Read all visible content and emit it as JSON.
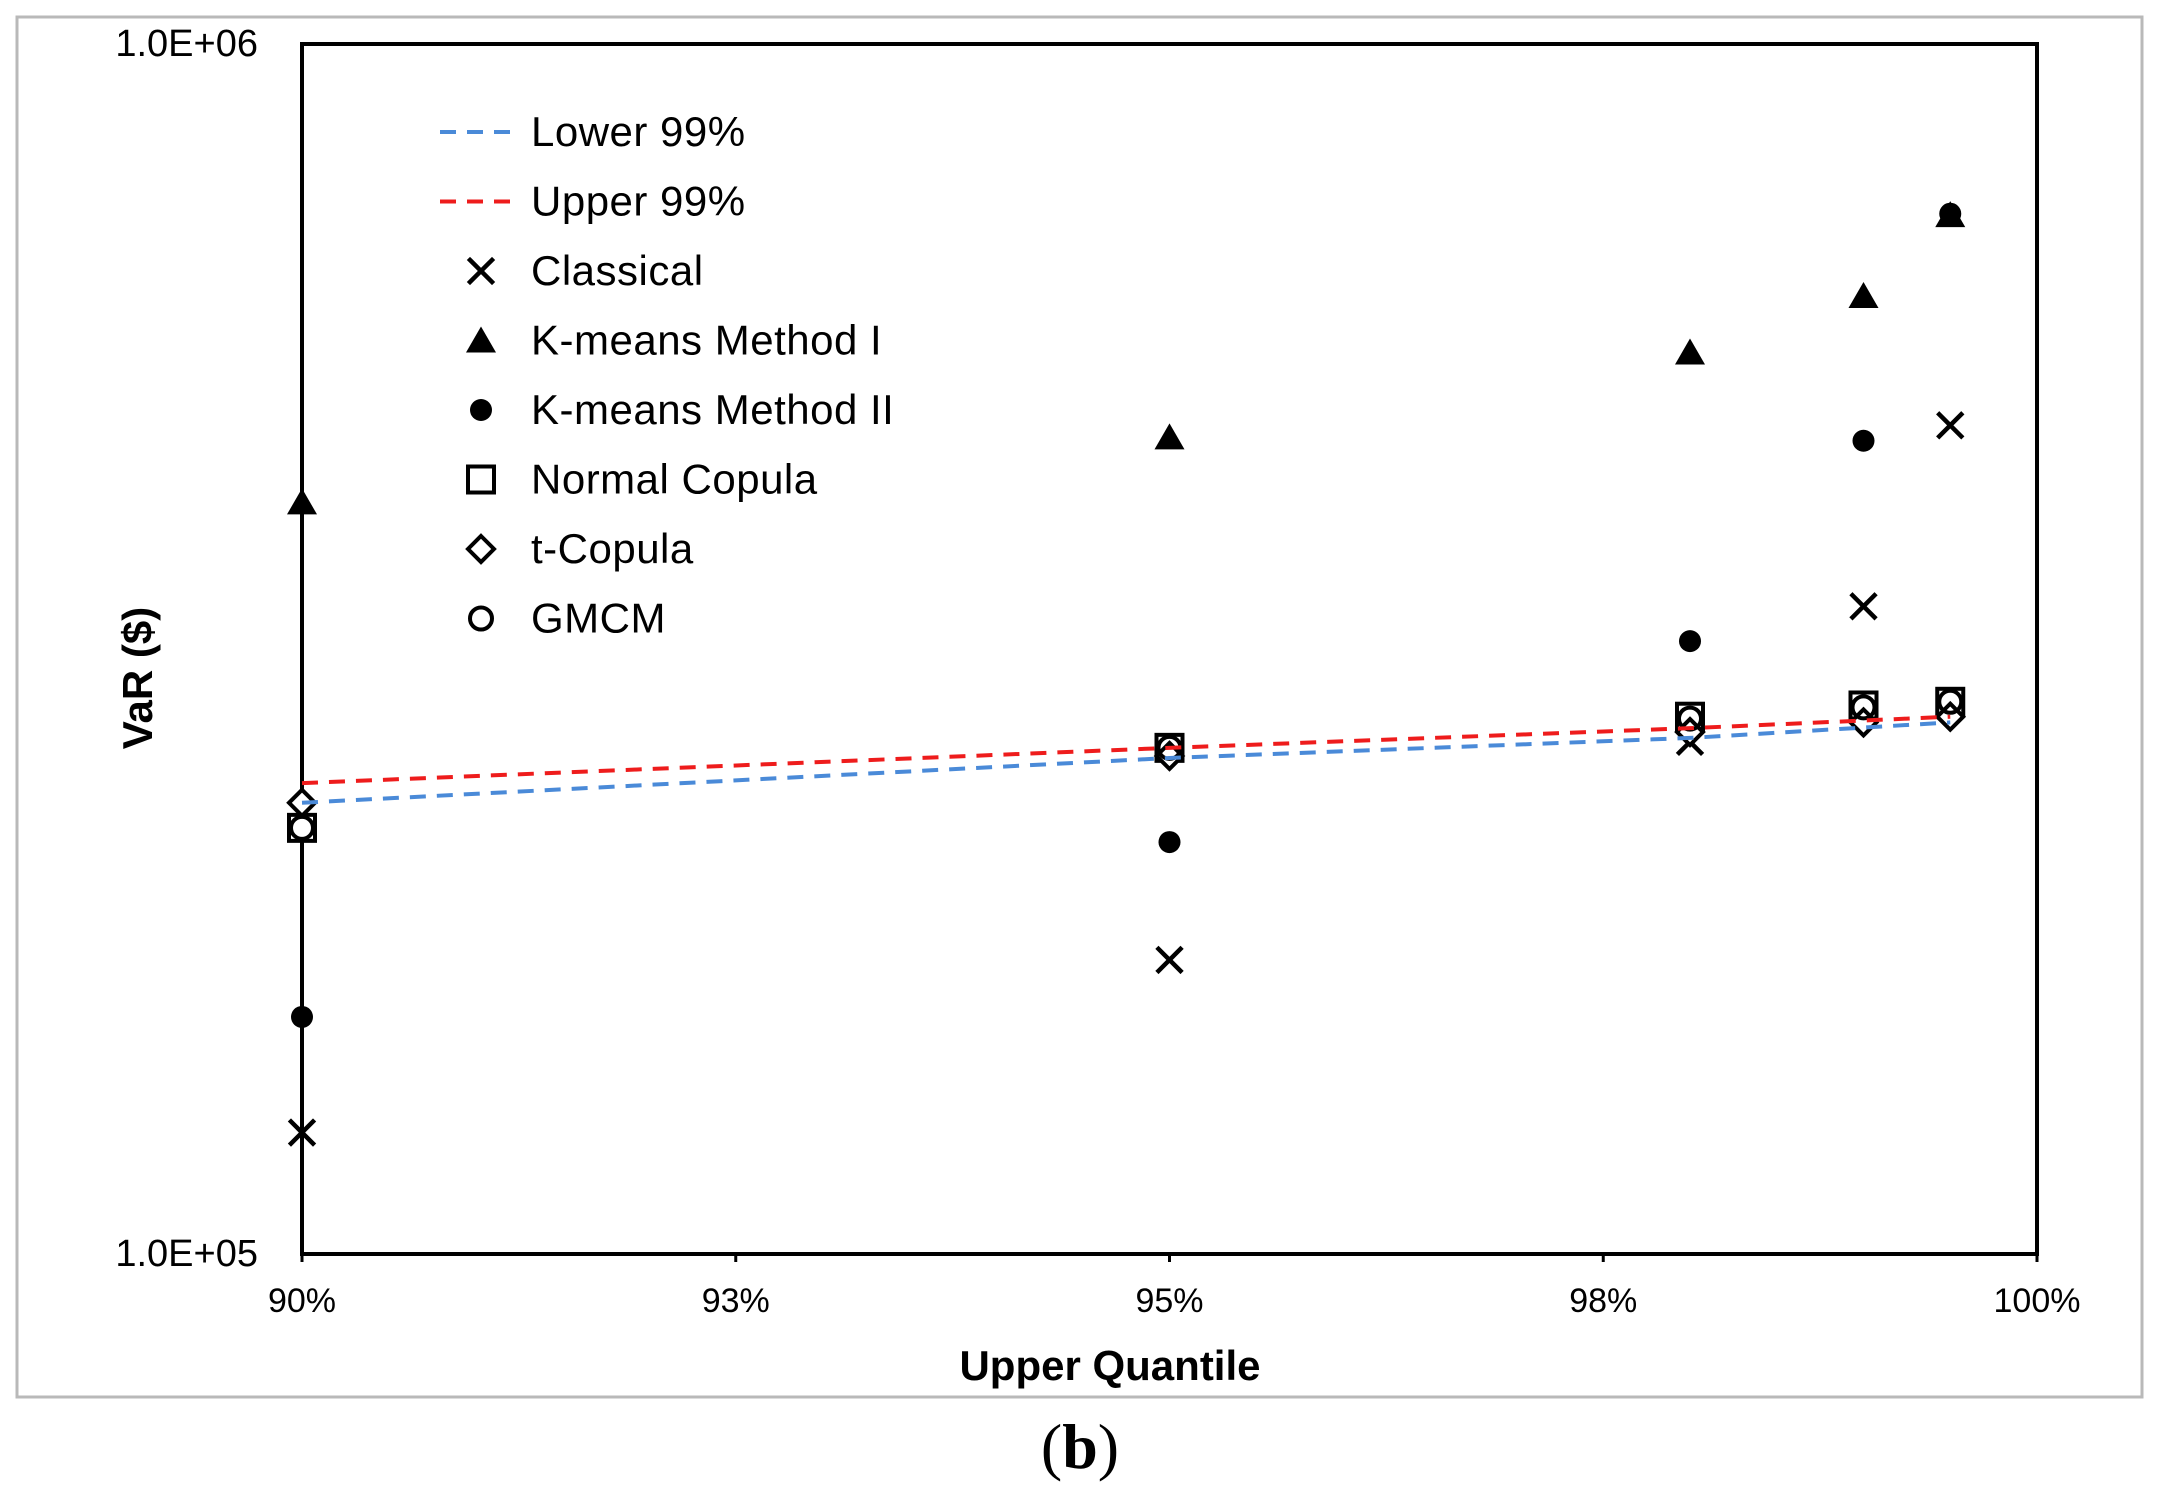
{
  "chart_data": {
    "type": "scatter",
    "title": "",
    "xlabel": "Upper Quantile",
    "ylabel": "VaR ($)",
    "y_scale": "log",
    "ylim": [
      100000,
      1000000
    ],
    "xlim": [
      0.9,
      1.0
    ],
    "x_ticks": [
      0.9,
      0.925,
      0.95,
      0.975,
      1.0
    ],
    "x_tick_labels": [
      "90%",
      "93%",
      "95%",
      "98%",
      "100%"
    ],
    "y_ticks": [
      100000,
      1000000
    ],
    "y_tick_labels": [
      "1.0E+05",
      "1.0E+06"
    ],
    "legend_position": "top-left",
    "series": [
      {
        "name": "Lower 99%",
        "kind": "line",
        "style": "dashed",
        "color": "#4a8ad8",
        "x": [
          0.9,
          0.95,
          0.98,
          0.995
        ],
        "y": [
          236000,
          257000,
          267000,
          275000
        ]
      },
      {
        "name": "Upper 99%",
        "kind": "line",
        "style": "dashed",
        "color": "#ee1c1c",
        "x": [
          0.9,
          0.95,
          0.98,
          0.995
        ],
        "y": [
          245000,
          262000,
          272000,
          278000
        ]
      },
      {
        "name": "Classical",
        "kind": "marker",
        "marker": "x",
        "color": "#000000",
        "x": [
          0.9,
          0.95,
          0.98,
          0.99,
          0.995
        ],
        "y": [
          126000,
          175000,
          265000,
          343000,
          484000
        ]
      },
      {
        "name": "K-means Method I",
        "kind": "marker",
        "marker": "triangle",
        "color": "#000000",
        "x": [
          0.9,
          0.95,
          0.98,
          0.99,
          0.995
        ],
        "y": [
          418000,
          473000,
          556000,
          619000,
          722000
        ]
      },
      {
        "name": "K-means Method II",
        "kind": "marker",
        "marker": "circle",
        "color": "#000000",
        "x": [
          0.9,
          0.95,
          0.98,
          0.99,
          0.995
        ],
        "y": [
          157000,
          219000,
          321000,
          470000,
          724000
        ]
      },
      {
        "name": "Normal Copula",
        "kind": "marker",
        "marker": "square",
        "color": "#000000",
        "x": [
          0.9,
          0.95,
          0.98,
          0.99,
          0.995
        ],
        "y": [
          225000,
          262000,
          278000,
          284000,
          286000
        ]
      },
      {
        "name": "t-Copula",
        "kind": "marker",
        "marker": "diamond",
        "color": "#000000",
        "x": [
          0.9,
          0.95,
          0.98,
          0.99,
          0.995
        ],
        "y": [
          236000,
          258000,
          270000,
          275000,
          278000
        ]
      },
      {
        "name": "GMCM",
        "kind": "marker",
        "marker": "open-circle",
        "color": "#000000",
        "x": [
          0.9,
          0.95,
          0.98,
          0.99,
          0.995
        ],
        "y": [
          225000,
          262000,
          277000,
          283000,
          286000
        ]
      }
    ]
  },
  "panel_label": {
    "open": "(",
    "letter": "b",
    "close": ")"
  }
}
